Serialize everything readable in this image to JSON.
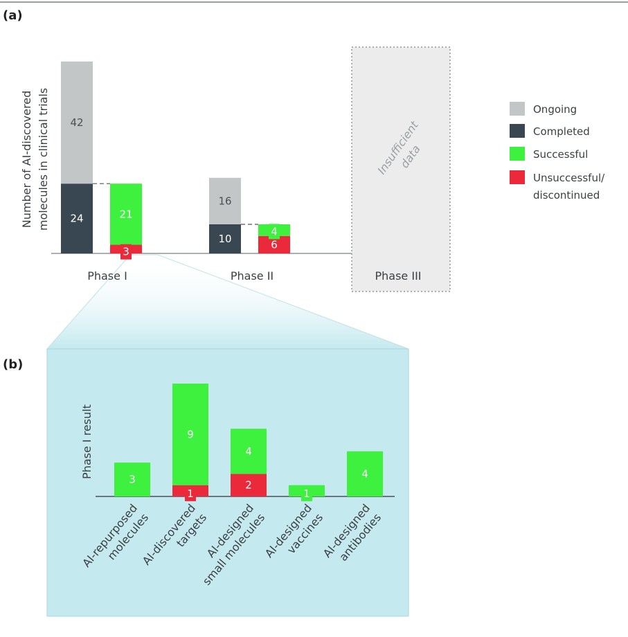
{
  "colors": {
    "ongoing": "#c2c6c7",
    "completed": "#384752",
    "successful": "#3ef13e",
    "unsuccessful": "#ea2a3b",
    "panel_b_bg": "#c4e9ee",
    "axis": "#8f9599"
  },
  "panel_a": {
    "label": "(a)",
    "ylabel_line1": "Number of AI-discovered",
    "ylabel_line2": "molecules in clinical trials",
    "insufficient_line1": "Insufficient",
    "insufficient_line2": "data",
    "legend": [
      {
        "key": "ongoing",
        "label": "Ongoing"
      },
      {
        "key": "completed",
        "label": "Completed"
      },
      {
        "key": "successful",
        "label": "Successful"
      },
      {
        "key": "unsuccessful",
        "label_line1": "Unsuccessful/",
        "label_line2": "discontinued"
      }
    ]
  },
  "panel_b": {
    "label": "(b)",
    "ylabel": "Phase I result"
  },
  "chart_data": [
    {
      "type": "bar",
      "title": "(a)",
      "ylabel": "Number of AI-discovered molecules in clinical trials",
      "categories": [
        "Phase I",
        "Phase II",
        "Phase III"
      ],
      "ylim": [
        0,
        70
      ],
      "trials": {
        "series": [
          {
            "name": "Completed",
            "values": [
              24,
              10,
              null
            ]
          },
          {
            "name": "Ongoing",
            "values": [
              42,
              16,
              null
            ]
          }
        ]
      },
      "outcomes": {
        "series": [
          {
            "name": "Unsuccessful/ discontinued",
            "values": [
              3,
              6,
              null
            ]
          },
          {
            "name": "Successful",
            "values": [
              21,
              4,
              null
            ]
          }
        ]
      },
      "annotations": [
        "Insufficient data"
      ]
    },
    {
      "type": "bar",
      "title": "(b)",
      "ylabel": "Phase I result",
      "categories": [
        "AI-repurposed molecules",
        "AI-discovered targets",
        "AI-designed small molecules",
        "AI-designed vaccines",
        "AI-designed antibodies"
      ],
      "category_lines": [
        [
          "AI-repurposed",
          "molecules"
        ],
        [
          "AI-discovered",
          "targets"
        ],
        [
          "AI-designed",
          "small molecules"
        ],
        [
          "AI-designed",
          "vaccines"
        ],
        [
          "AI-designed",
          "antibodies"
        ]
      ],
      "ylim": [
        0,
        10
      ],
      "series": [
        {
          "name": "Unsuccessful/ discontinued",
          "values": [
            0,
            1,
            2,
            0,
            0
          ]
        },
        {
          "name": "Successful",
          "values": [
            3,
            9,
            4,
            1,
            4
          ]
        }
      ]
    }
  ]
}
